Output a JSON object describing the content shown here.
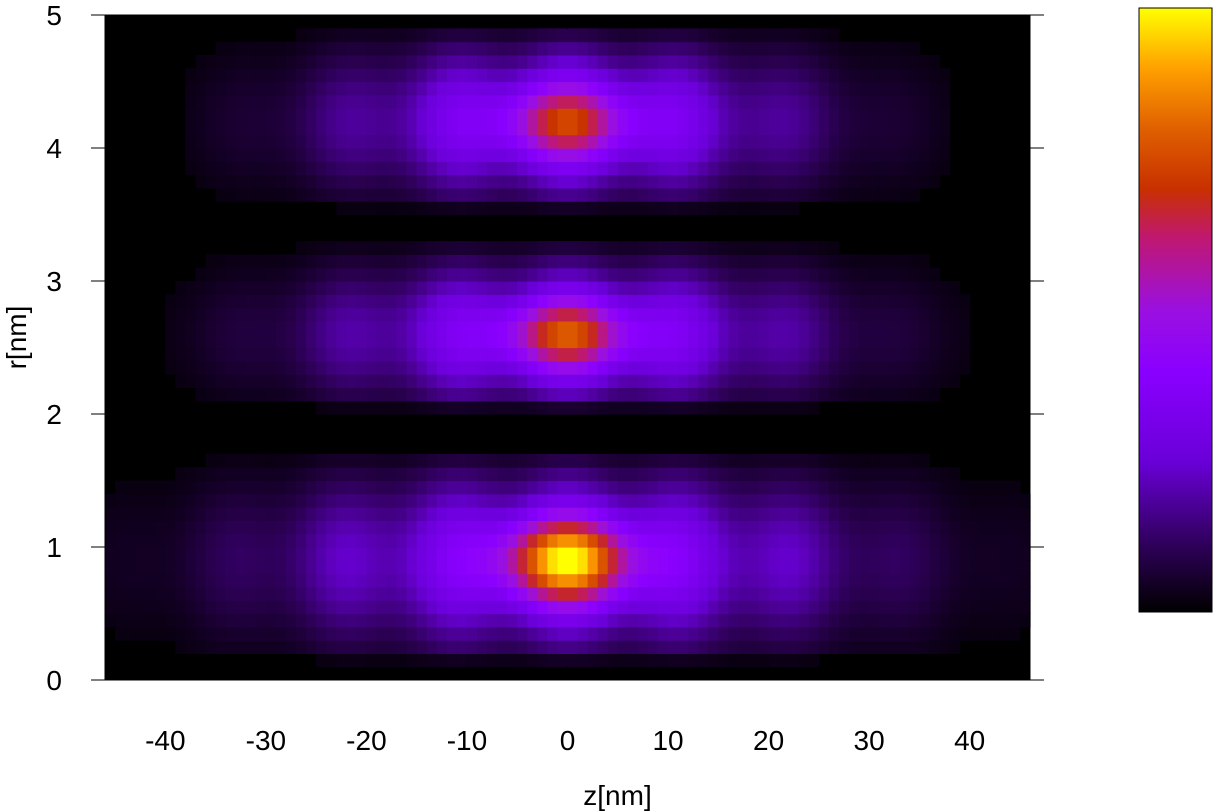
{
  "chart_data": {
    "type": "heatmap",
    "title": "",
    "xlabel": "z[nm]",
    "ylabel": "r[nm]",
    "xlim": [
      -46,
      46
    ],
    "ylim": [
      0,
      5
    ],
    "x_ticks": [
      -40,
      -30,
      -20,
      -10,
      0,
      10,
      20,
      30,
      40
    ],
    "y_ticks": [
      0,
      1,
      2,
      3,
      4,
      5
    ],
    "colormap": [
      "#000000",
      "#3a0066",
      "#8a00ff",
      "#b41ce0",
      "#c8003a",
      "#e05000",
      "#ffa000",
      "#ffff00"
    ],
    "colorbar": {
      "placement": "right",
      "tick_labels": false
    },
    "bands": [
      {
        "r_min": 0.1,
        "r_max": 1.75,
        "r_center": 0.9,
        "z_extent": 44,
        "peak_value": 1.0
      },
      {
        "r_min": 2.0,
        "r_max": 3.35,
        "r_center": 2.6,
        "z_extent": 38,
        "peak_value": 0.62
      },
      {
        "r_min": 3.5,
        "r_max": 4.95,
        "r_center": 4.2,
        "z_extent": 36,
        "peak_value": 0.55
      }
    ]
  }
}
